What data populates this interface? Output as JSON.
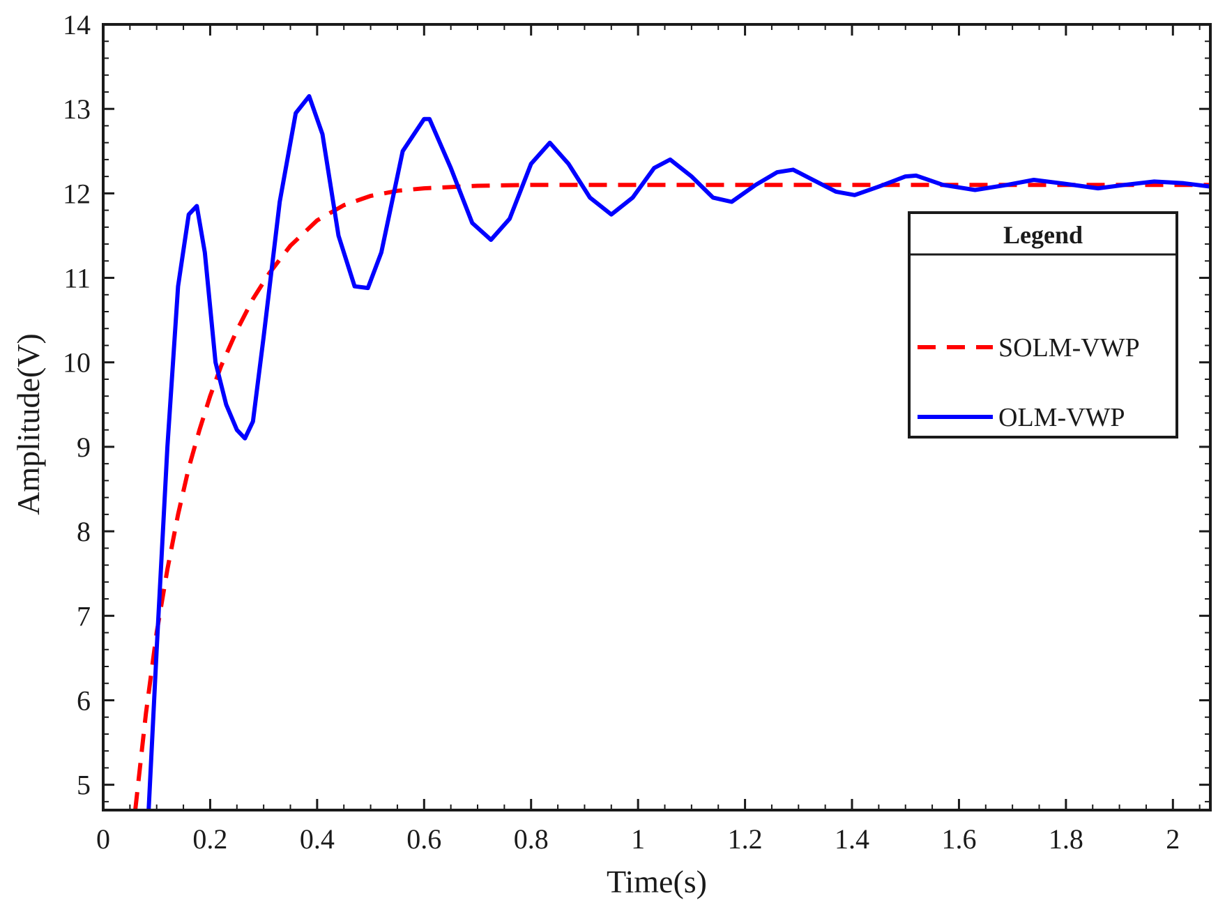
{
  "chart_data": {
    "type": "line",
    "title": "",
    "xlabel": "Time(s)",
    "ylabel": "Amplitude(V)",
    "xlim": [
      0,
      2.07
    ],
    "ylim": [
      4.7,
      14
    ],
    "xticks": [
      0,
      0.2,
      0.4,
      0.6,
      0.8,
      1,
      1.2,
      1.4,
      1.6,
      1.8,
      2
    ],
    "xtick_labels": [
      "0",
      "0.2",
      "0.4",
      "0.6",
      "0.8",
      "1",
      "1.2",
      "1.4",
      "1.6",
      "1.8",
      "2"
    ],
    "yticks": [
      5,
      6,
      7,
      8,
      9,
      10,
      11,
      12,
      13,
      14
    ],
    "ytick_labels": [
      "5",
      "6",
      "7",
      "8",
      "9",
      "10",
      "11",
      "12",
      "13",
      "14"
    ],
    "grid": false,
    "legend": {
      "title": "Legend",
      "placement": "right, upper-middle",
      "entries": [
        "SOLM-VWP",
        "OLM-VWP"
      ]
    },
    "series": [
      {
        "name": "SOLM-VWP",
        "color": "#ff0000",
        "style": "dashed",
        "x": [
          0.06,
          0.08,
          0.1,
          0.12,
          0.14,
          0.16,
          0.18,
          0.2,
          0.22,
          0.25,
          0.28,
          0.31,
          0.35,
          0.4,
          0.45,
          0.5,
          0.55,
          0.6,
          0.7,
          0.8,
          1.0,
          1.2,
          1.5,
          1.8,
          2.07
        ],
        "y": [
          4.7,
          5.85,
          6.8,
          7.55,
          8.2,
          8.75,
          9.2,
          9.6,
          9.95,
          10.38,
          10.75,
          11.05,
          11.38,
          11.68,
          11.86,
          11.97,
          12.03,
          12.06,
          12.09,
          12.1,
          12.1,
          12.1,
          12.1,
          12.1,
          12.1
        ]
      },
      {
        "name": "OLM-VWP",
        "color": "#0000ff",
        "style": "solid",
        "x": [
          0.085,
          0.1,
          0.12,
          0.14,
          0.16,
          0.175,
          0.19,
          0.21,
          0.23,
          0.25,
          0.265,
          0.28,
          0.3,
          0.33,
          0.36,
          0.385,
          0.41,
          0.44,
          0.47,
          0.495,
          0.52,
          0.56,
          0.6,
          0.61,
          0.65,
          0.69,
          0.725,
          0.76,
          0.8,
          0.835,
          0.87,
          0.91,
          0.95,
          0.99,
          1.03,
          1.06,
          1.1,
          1.14,
          1.175,
          1.22,
          1.26,
          1.29,
          1.33,
          1.37,
          1.405,
          1.45,
          1.5,
          1.52,
          1.57,
          1.63,
          1.69,
          1.74,
          1.79,
          1.86,
          1.91,
          1.965,
          2.02,
          2.07
        ],
        "y": [
          4.7,
          6.6,
          9.0,
          10.9,
          11.75,
          11.85,
          11.3,
          10.0,
          9.5,
          9.2,
          9.1,
          9.3,
          10.3,
          11.9,
          12.95,
          13.15,
          12.7,
          11.5,
          10.9,
          10.88,
          11.3,
          12.5,
          12.88,
          12.88,
          12.3,
          11.65,
          11.45,
          11.7,
          12.35,
          12.6,
          12.35,
          11.95,
          11.75,
          11.95,
          12.3,
          12.4,
          12.2,
          11.95,
          11.9,
          12.1,
          12.25,
          12.28,
          12.15,
          12.02,
          11.98,
          12.08,
          12.2,
          12.21,
          12.1,
          12.04,
          12.1,
          12.16,
          12.12,
          12.06,
          12.1,
          12.14,
          12.12,
          12.08
        ]
      }
    ]
  }
}
